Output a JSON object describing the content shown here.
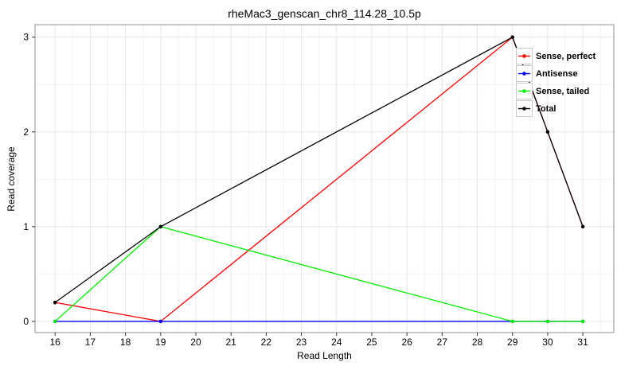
{
  "chart_data": {
    "type": "line",
    "title": "rheMac3_genscan_chr8_114.28_10.5p",
    "xlabel": "Read Length",
    "ylabel": "Read coverage",
    "x": [
      16,
      19,
      29,
      30,
      31
    ],
    "series": [
      {
        "name": "Sense, perfect",
        "color": "#ff0000",
        "values": [
          0.2,
          0,
          3,
          2,
          1
        ]
      },
      {
        "name": "Antisense",
        "color": "#0000ff",
        "values": [
          0,
          0,
          0,
          0,
          0
        ]
      },
      {
        "name": "Sense, tailed",
        "color": "#00ee00",
        "values": [
          0,
          1,
          0,
          0,
          0
        ]
      },
      {
        "name": "Total",
        "color": "#000000",
        "values": [
          0.2,
          1,
          3,
          2,
          1
        ]
      }
    ],
    "x_ticks": [
      16,
      17,
      18,
      19,
      20,
      21,
      22,
      23,
      24,
      25,
      26,
      27,
      28,
      29,
      30,
      31
    ],
    "y_ticks": [
      0,
      1,
      2,
      3
    ],
    "xlim": [
      15.43,
      31.88
    ],
    "ylim": [
      -0.118,
      3.132
    ],
    "grid": {
      "major": true,
      "minor": true,
      "minor_step": 0.5
    },
    "legend_position": "top-right",
    "marker": "circle"
  },
  "colors": {
    "background": "#ffffff",
    "panel_border": "#8f8f8f",
    "grid_major": "#e6e6e6",
    "grid_minor": "#f3f3f3",
    "tick": "#333333",
    "text": "#000000",
    "legend_key_border": "#c9c9c9"
  }
}
